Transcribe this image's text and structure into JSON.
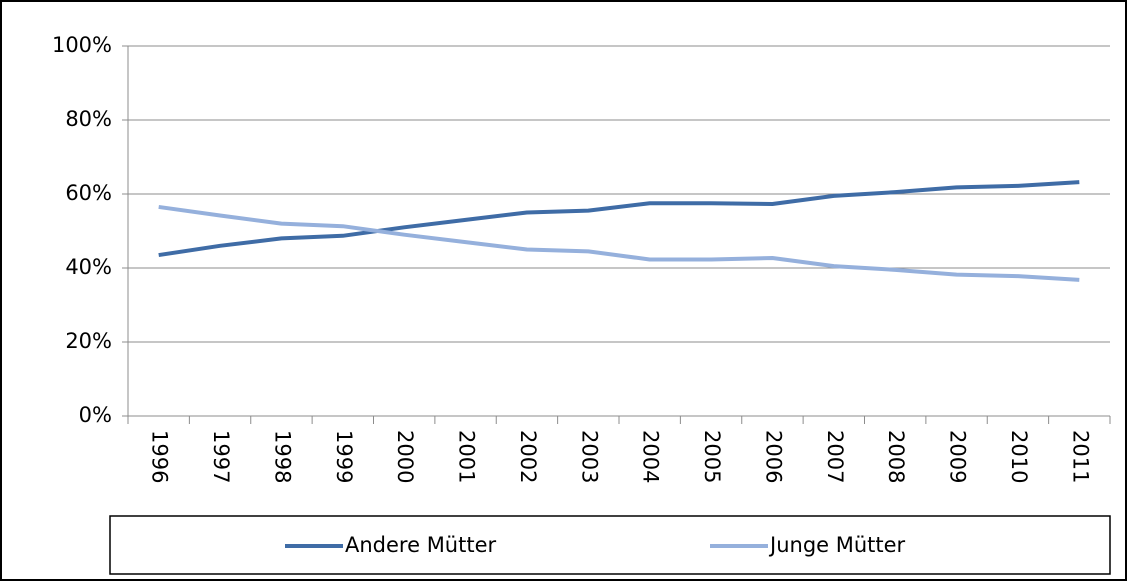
{
  "chart_data": {
    "type": "line",
    "categories": [
      "1996",
      "1997",
      "1998",
      "1999",
      "2000",
      "2001",
      "2002",
      "2003",
      "2004",
      "2005",
      "2006",
      "2007",
      "2008",
      "2009",
      "2010",
      "2011"
    ],
    "series": [
      {
        "name": "Andere Mütter",
        "color": "#3f6ca6",
        "values": [
          43.5,
          46,
          48,
          48.7,
          51,
          53,
          55,
          55.5,
          57.5,
          57.5,
          57.3,
          59.5,
          60.5,
          61.8,
          62.2,
          63.2
        ]
      },
      {
        "name": "Junge Mütter",
        "color": "#95b0dc",
        "values": [
          56.5,
          54.2,
          52,
          51.3,
          49,
          47,
          45,
          44.5,
          42.3,
          42.3,
          42.7,
          40.5,
          39.5,
          38.2,
          37.8,
          36.8
        ]
      }
    ],
    "ylim": [
      0,
      100
    ],
    "yticks": [
      {
        "value": 0,
        "label": "0%"
      },
      {
        "value": 20,
        "label": "20%"
      },
      {
        "value": 40,
        "label": "40%"
      },
      {
        "value": 60,
        "label": "60%"
      },
      {
        "value": 80,
        "label": "80%"
      },
      {
        "value": 100,
        "label": "100%"
      }
    ],
    "grid": true,
    "legend": "bottom"
  }
}
